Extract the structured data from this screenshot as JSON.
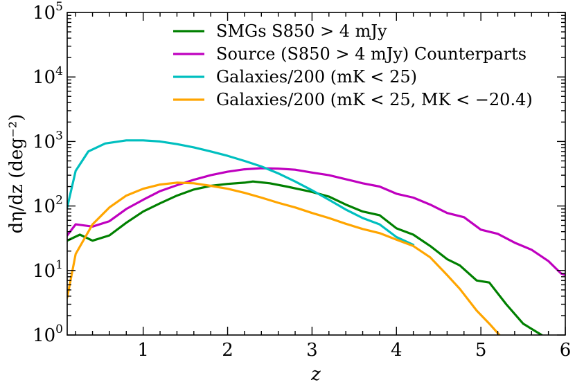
{
  "chart_data": {
    "type": "line",
    "xlabel": "z",
    "ylabel": "dη/dz (deg⁻²)",
    "xlim": [
      0.1,
      6
    ],
    "ylim": [
      1,
      100000
    ],
    "yscale": "log",
    "xticks": [
      {
        "value": 1,
        "label": "1"
      },
      {
        "value": 2,
        "label": "2"
      },
      {
        "value": 3,
        "label": "3"
      },
      {
        "value": 4,
        "label": "4"
      },
      {
        "value": 5,
        "label": "5"
      },
      {
        "value": 6,
        "label": "6"
      }
    ],
    "yticks": [
      {
        "value": 1,
        "base": "10",
        "exp": "0"
      },
      {
        "value": 10,
        "base": "10",
        "exp": "1"
      },
      {
        "value": 100,
        "base": "10",
        "exp": "2"
      },
      {
        "value": 1000,
        "base": "10",
        "exp": "3"
      },
      {
        "value": 10000,
        "base": "10",
        "exp": "4"
      },
      {
        "value": 100000,
        "base": "10",
        "exp": "5"
      }
    ],
    "legend_position": "top-right",
    "series": [
      {
        "name": "SMGs S850 > 4 mJy",
        "color": "#008000",
        "x": [
          0.1,
          0.25,
          0.4,
          0.6,
          0.8,
          1.0,
          1.2,
          1.4,
          1.6,
          1.8,
          2.0,
          2.2,
          2.3,
          2.5,
          2.7,
          3.0,
          3.2,
          3.4,
          3.6,
          3.8,
          4.0,
          4.2,
          4.4,
          4.6,
          4.75,
          4.95,
          5.1,
          5.3,
          5.5,
          5.72
        ],
        "y": [
          29,
          36,
          29,
          35,
          55,
          82,
          110,
          145,
          180,
          205,
          220,
          230,
          240,
          225,
          200,
          165,
          140,
          105,
          82,
          72,
          45,
          36,
          24,
          15,
          12,
          7,
          6.5,
          3,
          1.5,
          1
        ]
      },
      {
        "name": "Source (S850 > 4 mJy) Counterparts",
        "color": "#bf00bf",
        "x": [
          0.1,
          0.2,
          0.4,
          0.6,
          0.8,
          1.0,
          1.2,
          1.4,
          1.6,
          1.8,
          2.0,
          2.2,
          2.4,
          2.6,
          2.8,
          3.0,
          3.2,
          3.4,
          3.6,
          3.8,
          4.0,
          4.2,
          4.4,
          4.6,
          4.8,
          5.0,
          5.2,
          5.4,
          5.6,
          5.8,
          5.95,
          6.0
        ],
        "y": [
          35,
          52,
          48,
          58,
          90,
          125,
          170,
          210,
          255,
          300,
          340,
          370,
          385,
          380,
          365,
          330,
          300,
          260,
          225,
          200,
          155,
          135,
          105,
          78,
          67,
          43,
          37,
          27,
          21,
          14,
          9,
          8.5
        ]
      },
      {
        "name": "Galaxies/200 (mK < 25)",
        "color": "#00bfbf",
        "x": [
          0.1,
          0.2,
          0.35,
          0.55,
          0.8,
          1.0,
          1.2,
          1.4,
          1.6,
          1.8,
          2.0,
          2.2,
          2.4,
          2.6,
          2.8,
          3.0,
          3.2,
          3.4,
          3.6,
          3.8,
          4.0,
          4.2
        ],
        "y": [
          95,
          350,
          700,
          930,
          1040,
          1040,
          1000,
          910,
          810,
          700,
          600,
          500,
          410,
          320,
          240,
          175,
          125,
          88,
          65,
          52,
          33,
          25
        ]
      },
      {
        "name": "Galaxies/200 (mK < 25, MK < −20.4)",
        "color": "#ffa500",
        "x": [
          0.1,
          0.2,
          0.4,
          0.6,
          0.8,
          1.0,
          1.2,
          1.4,
          1.6,
          1.8,
          2.0,
          2.2,
          2.4,
          2.6,
          2.8,
          3.0,
          3.2,
          3.4,
          3.6,
          3.8,
          4.0,
          4.2,
          4.4,
          4.6,
          4.75,
          4.95,
          5.1,
          5.22
        ],
        "y": [
          3.8,
          18,
          52,
          95,
          145,
          185,
          215,
          230,
          225,
          205,
          185,
          160,
          135,
          112,
          95,
          78,
          65,
          53,
          44,
          38,
          30,
          24,
          16,
          8.5,
          5.2,
          2.4,
          1.5,
          1
        ]
      }
    ],
    "legend": {
      "entries": [
        {
          "text": "SMGs S850 > 4 mJy"
        },
        {
          "text": "Source (S850 > 4 mJy) Counterparts"
        },
        {
          "text": "Galaxies/200 (mK < 25)"
        },
        {
          "text": "Galaxies/200 (mK < 25, MK < −20.4)"
        }
      ]
    }
  }
}
